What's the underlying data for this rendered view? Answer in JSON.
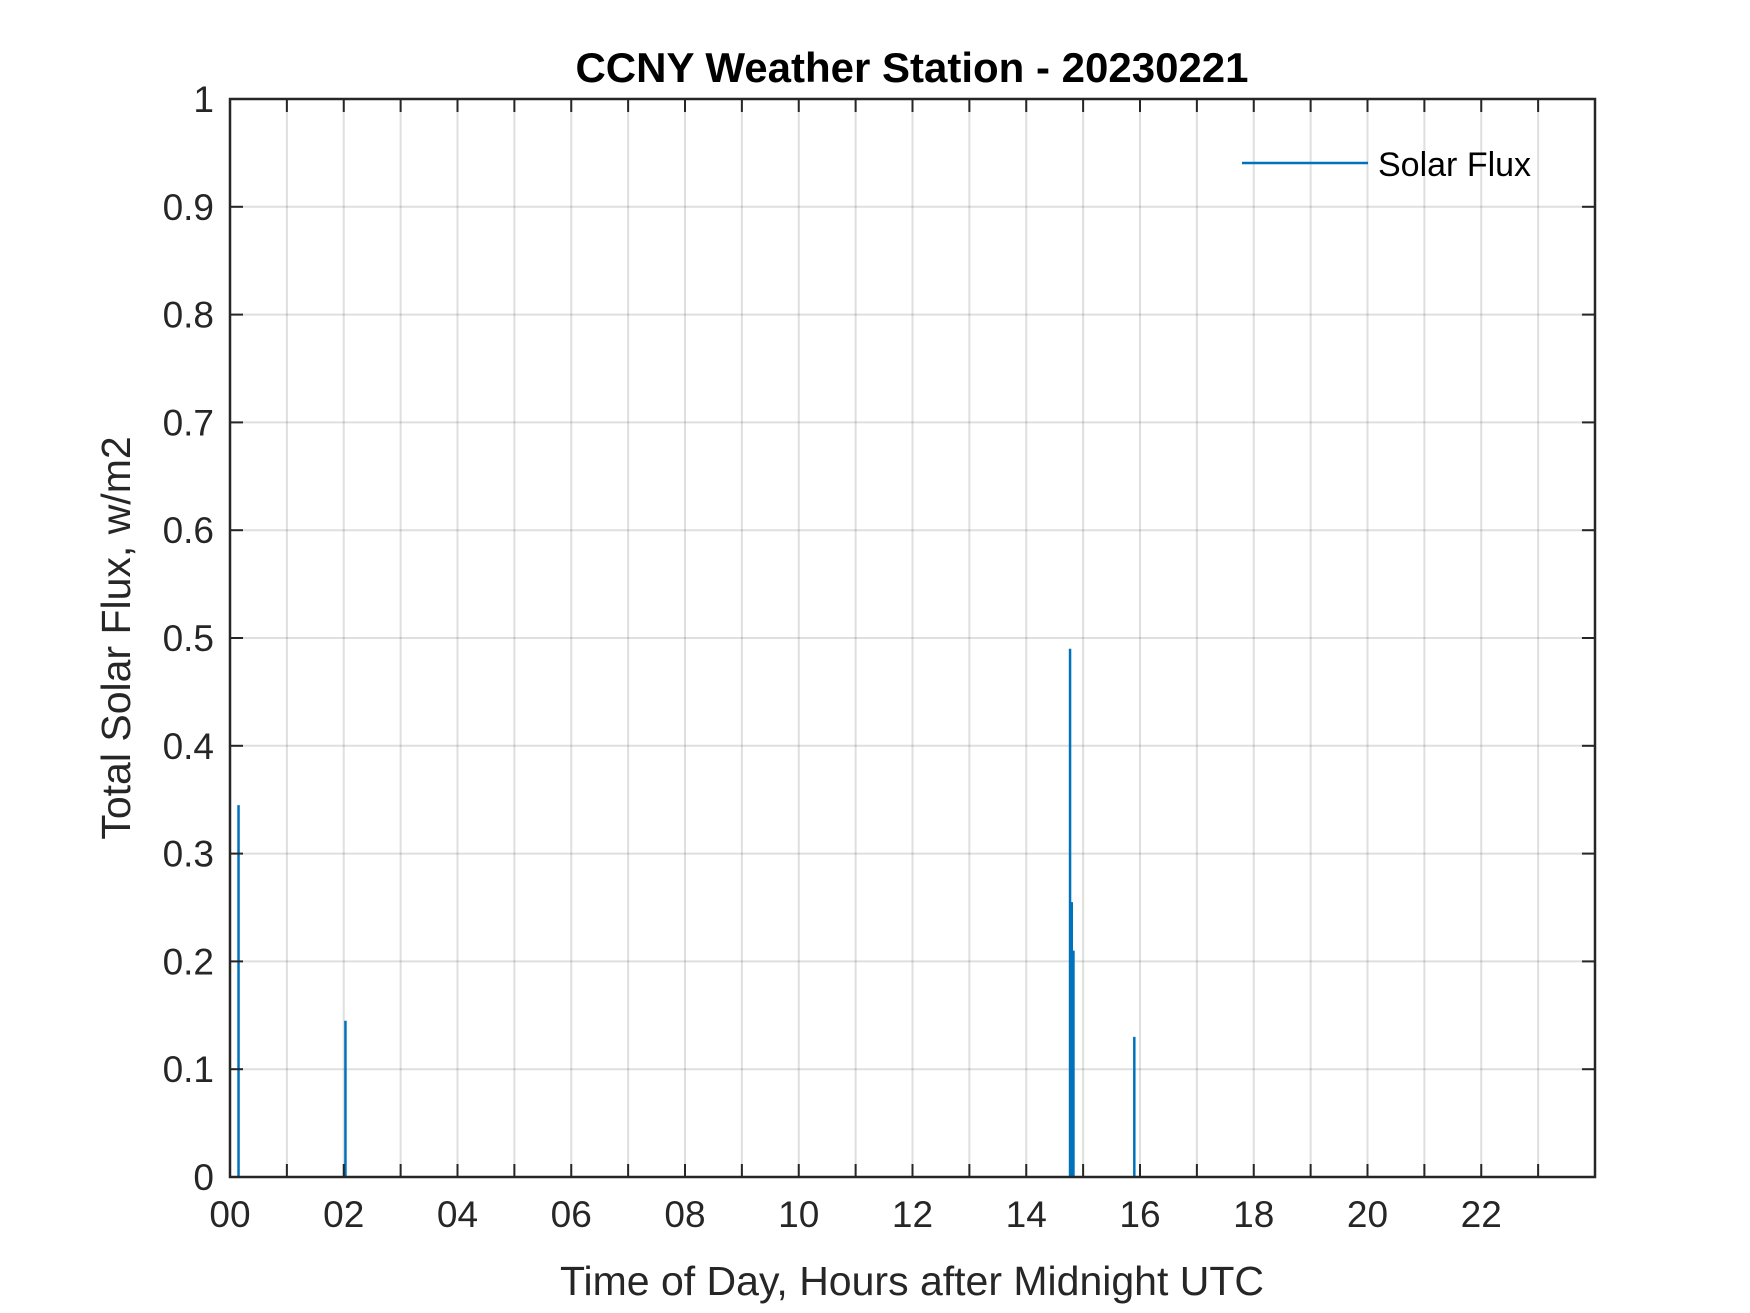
{
  "chart_data": {
    "type": "line",
    "title": "CCNY Weather Station - 20230221",
    "xlabel": "Time of Day, Hours after Midnight UTC",
    "ylabel": "Total Solar Flux, w/m2",
    "xlim": [
      0,
      24
    ],
    "ylim": [
      0,
      1
    ],
    "x_ticks": [
      0,
      2,
      4,
      6,
      8,
      10,
      12,
      14,
      16,
      18,
      20,
      22
    ],
    "x_tick_labels": [
      "00",
      "02",
      "04",
      "06",
      "08",
      "10",
      "12",
      "14",
      "16",
      "18",
      "20",
      "22"
    ],
    "y_ticks": [
      0,
      0.1,
      0.2,
      0.3,
      0.4,
      0.5,
      0.6,
      0.7,
      0.8,
      0.9,
      1
    ],
    "y_tick_labels": [
      "0",
      "0.1",
      "0.2",
      "0.3",
      "0.4",
      "0.5",
      "0.6",
      "0.7",
      "0.8",
      "0.9",
      "1"
    ],
    "grid": true,
    "grid_minor_x": true,
    "legend_position": "top-right",
    "series": [
      {
        "name": "Solar Flux",
        "color": "#0072BD",
        "spikes": [
          {
            "x": 0.15,
            "y": 0.345
          },
          {
            "x": 2.03,
            "y": 0.145
          },
          {
            "x": 14.77,
            "y": 0.49
          },
          {
            "x": 14.8,
            "y": 0.255
          },
          {
            "x": 14.83,
            "y": 0.21
          },
          {
            "x": 15.9,
            "y": 0.13
          }
        ]
      }
    ]
  }
}
